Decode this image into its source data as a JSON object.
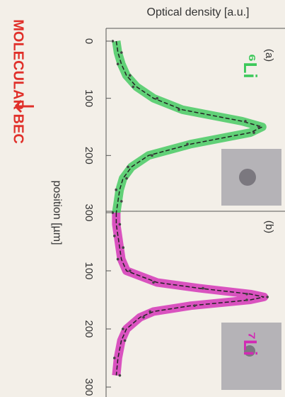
{
  "chart_data": [
    {
      "type": "line",
      "title": "Optical density [a.u.]",
      "xlabel": "position [µm]",
      "panel": "(a)",
      "annotation": "⁶Li",
      "note": "MOLECULAR BEC",
      "color": "#3cc85a",
      "fit_color": "#222222",
      "x": [
        0,
        20,
        40,
        60,
        80,
        100,
        120,
        140,
        150,
        160,
        180,
        200,
        220,
        240,
        260,
        280,
        300
      ],
      "values": [
        0.06,
        0.07,
        0.09,
        0.12,
        0.18,
        0.28,
        0.45,
        0.8,
        0.92,
        0.85,
        0.5,
        0.25,
        0.15,
        0.1,
        0.08,
        0.07,
        0.06
      ],
      "xlim": [
        0,
        300
      ],
      "xticks": [
        0,
        100,
        200,
        300
      ],
      "ylim": [
        0,
        1
      ]
    },
    {
      "type": "line",
      "panel": "(b)",
      "annotation": "⁷Li",
      "color": "#d22ab4",
      "fit_color": "#222222",
      "x": [
        0,
        20,
        40,
        60,
        80,
        100,
        120,
        130,
        140,
        145,
        150,
        160,
        170,
        180,
        200,
        220,
        250,
        280
      ],
      "values": [
        0.06,
        0.06,
        0.07,
        0.08,
        0.09,
        0.12,
        0.3,
        0.55,
        0.85,
        0.93,
        0.85,
        0.5,
        0.28,
        0.2,
        0.12,
        0.09,
        0.07,
        0.06
      ],
      "xlim": [
        0,
        300
      ],
      "xticks": [
        100,
        200,
        300
      ],
      "ylim": [
        0,
        1
      ]
    }
  ]
}
